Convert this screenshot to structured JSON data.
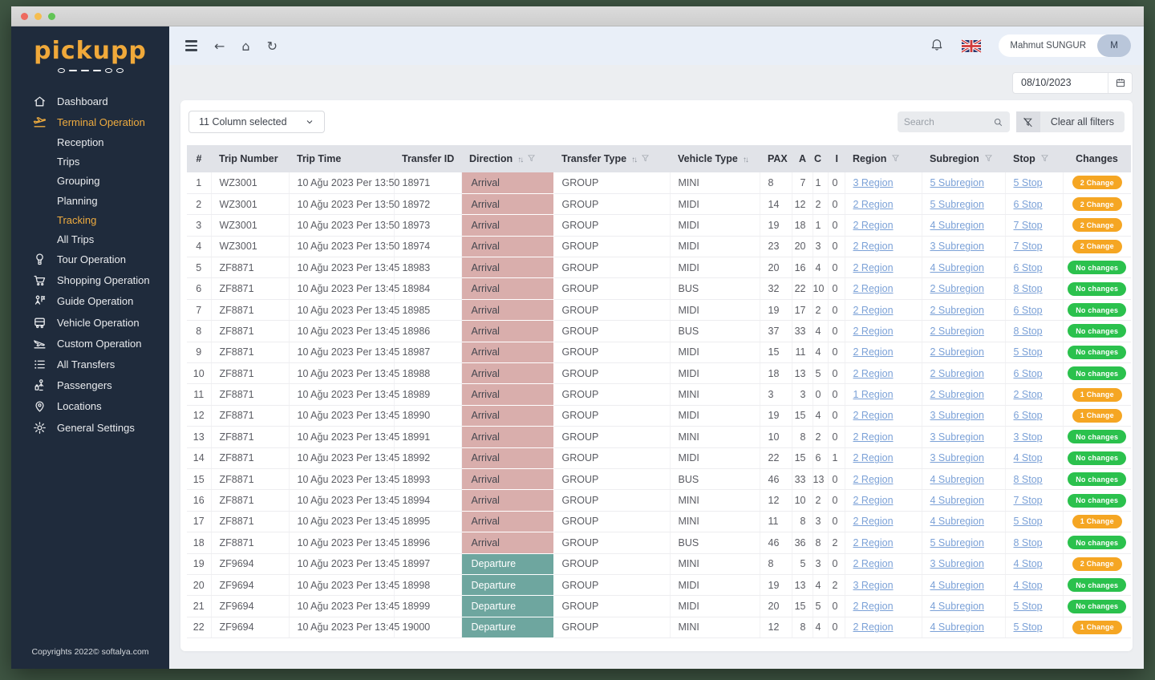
{
  "sidebar": {
    "logo_text": "pickupp",
    "items": [
      {
        "label": "Dashboard",
        "icon": "home-icon",
        "active": false,
        "child": false
      },
      {
        "label": "Terminal Operation",
        "icon": "terminal-icon",
        "active": true,
        "child": false
      },
      {
        "label": "Reception",
        "icon": null,
        "active": false,
        "child": true
      },
      {
        "label": "Trips",
        "icon": null,
        "active": false,
        "child": true
      },
      {
        "label": "Grouping",
        "icon": null,
        "active": false,
        "child": true
      },
      {
        "label": "Planning",
        "icon": null,
        "active": false,
        "child": true
      },
      {
        "label": "Tracking",
        "icon": null,
        "active": true,
        "child": true
      },
      {
        "label": "All Trips",
        "icon": null,
        "active": false,
        "child": true
      },
      {
        "label": "Tour Operation",
        "icon": "balloon-icon",
        "active": false,
        "child": false
      },
      {
        "label": "Shopping Operation",
        "icon": "cart-icon",
        "active": false,
        "child": false
      },
      {
        "label": "Guide Operation",
        "icon": "guide-icon",
        "active": false,
        "child": false
      },
      {
        "label": "Vehicle Operation",
        "icon": "bus-icon",
        "active": false,
        "child": false
      },
      {
        "label": "Custom Operation",
        "icon": "custom-icon",
        "active": false,
        "child": false
      },
      {
        "label": "All Transfers",
        "icon": "list-icon",
        "active": false,
        "child": false
      },
      {
        "label": "Passengers",
        "icon": "passenger-icon",
        "active": false,
        "child": false
      },
      {
        "label": "Locations",
        "icon": "location-icon",
        "active": false,
        "child": false
      },
      {
        "label": "General Settings",
        "icon": "gear-icon",
        "active": false,
        "child": false
      }
    ],
    "footer": "Copyrights 2022© softalya.com"
  },
  "topbar": {
    "user_name": "Mahmut SUNGUR",
    "user_initial": "M"
  },
  "filters": {
    "date_value": "08/10/2023",
    "column_selector_label": "11 Column selected",
    "search_placeholder": "Search",
    "clear_filters_label": "Clear all filters"
  },
  "colors": {
    "accent_orange": "#eeab3f",
    "sidebar_bg": "#1f2b3c",
    "arrival_bg": "#d9aeac",
    "departure_bg": "#6ea69f",
    "badge_orange": "#f5a623",
    "badge_green": "#2bc14d",
    "link_blue": "#7ba1d7"
  },
  "table": {
    "columns": [
      {
        "label": "#",
        "key": "n",
        "cls": "c-num",
        "width": 30
      },
      {
        "label": "Trip Number",
        "key": "trip",
        "cls": "",
        "width": 97
      },
      {
        "label": "Trip Time",
        "key": "time",
        "cls": "",
        "width": 131
      },
      {
        "label": "Transfer ID",
        "key": "id",
        "cls": "",
        "width": 84
      },
      {
        "label": "Direction",
        "key": "dir",
        "cls": "",
        "width": 115,
        "sort": true,
        "filter": true
      },
      {
        "label": "Transfer Type",
        "key": "type",
        "cls": "",
        "width": 145,
        "sort": true,
        "filter": true
      },
      {
        "label": "Vehicle Type",
        "key": "vehicle",
        "cls": "",
        "width": 112,
        "sort": true
      },
      {
        "label": "PAX",
        "key": "pax",
        "cls": "",
        "width": 40
      },
      {
        "label": "A",
        "key": "a",
        "cls": "c-aci",
        "width": 26
      },
      {
        "label": "C",
        "key": "c",
        "cls": "c-aci",
        "width": 19
      },
      {
        "label": "I",
        "key": "i",
        "cls": "c-aci",
        "width": 21
      },
      {
        "label": "Region",
        "key": "region",
        "cls": "",
        "width": 96,
        "filter": true
      },
      {
        "label": "Subregion",
        "key": "subregion",
        "cls": "",
        "width": 104,
        "filter": true
      },
      {
        "label": "Stop",
        "key": "stop",
        "cls": "",
        "width": 72,
        "filter": true
      },
      {
        "label": "Changes",
        "key": "changes",
        "cls": "c-changes",
        "width": 85
      }
    ],
    "rows": [
      {
        "n": 1,
        "trip": "WZ3001",
        "time": "10 Ağu 2023 Per 13:50",
        "id": "18971",
        "dir": "Arrival",
        "type": "GROUP",
        "vehicle": "MINI",
        "pax": 8,
        "a": 7,
        "c": 1,
        "i": 0,
        "region": "3 Region",
        "subregion": "5 Subregion",
        "stop": "5 Stop",
        "changes": "2 Change",
        "changes_color": "orange"
      },
      {
        "n": 2,
        "trip": "WZ3001",
        "time": "10 Ağu 2023 Per 13:50",
        "id": "18972",
        "dir": "Arrival",
        "type": "GROUP",
        "vehicle": "MIDI",
        "pax": 14,
        "a": 12,
        "c": 2,
        "i": 0,
        "region": "2 Region",
        "subregion": "5 Subregion",
        "stop": "6 Stop",
        "changes": "2 Change",
        "changes_color": "orange"
      },
      {
        "n": 3,
        "trip": "WZ3001",
        "time": "10 Ağu 2023 Per 13:50",
        "id": "18973",
        "dir": "Arrival",
        "type": "GROUP",
        "vehicle": "MIDI",
        "pax": 19,
        "a": 18,
        "c": 1,
        "i": 0,
        "region": "2 Region",
        "subregion": "4 Subregion",
        "stop": "7 Stop",
        "changes": "2 Change",
        "changes_color": "orange"
      },
      {
        "n": 4,
        "trip": "WZ3001",
        "time": "10 Ağu 2023 Per 13:50",
        "id": "18974",
        "dir": "Arrival",
        "type": "GROUP",
        "vehicle": "MIDI",
        "pax": 23,
        "a": 20,
        "c": 3,
        "i": 0,
        "region": "2 Region",
        "subregion": "3 Subregion",
        "stop": "7 Stop",
        "changes": "2 Change",
        "changes_color": "orange"
      },
      {
        "n": 5,
        "trip": "ZF8871",
        "time": "10 Ağu 2023 Per 13:45",
        "id": "18983",
        "dir": "Arrival",
        "type": "GROUP",
        "vehicle": "MIDI",
        "pax": 20,
        "a": 16,
        "c": 4,
        "i": 0,
        "region": "2 Region",
        "subregion": "4 Subregion",
        "stop": "6 Stop",
        "changes": "No changes",
        "changes_color": "green"
      },
      {
        "n": 6,
        "trip": "ZF8871",
        "time": "10 Ağu 2023 Per 13:45",
        "id": "18984",
        "dir": "Arrival",
        "type": "GROUP",
        "vehicle": "BUS",
        "pax": 32,
        "a": 22,
        "c": 10,
        "i": 0,
        "region": "2 Region",
        "subregion": "2 Subregion",
        "stop": "8 Stop",
        "changes": "No changes",
        "changes_color": "green"
      },
      {
        "n": 7,
        "trip": "ZF8871",
        "time": "10 Ağu 2023 Per 13:45",
        "id": "18985",
        "dir": "Arrival",
        "type": "GROUP",
        "vehicle": "MIDI",
        "pax": 19,
        "a": 17,
        "c": 2,
        "i": 0,
        "region": "2 Region",
        "subregion": "2 Subregion",
        "stop": "6 Stop",
        "changes": "No changes",
        "changes_color": "green"
      },
      {
        "n": 8,
        "trip": "ZF8871",
        "time": "10 Ağu 2023 Per 13:45",
        "id": "18986",
        "dir": "Arrival",
        "type": "GROUP",
        "vehicle": "BUS",
        "pax": 37,
        "a": 33,
        "c": 4,
        "i": 0,
        "region": "2 Region",
        "subregion": "2 Subregion",
        "stop": "8 Stop",
        "changes": "No changes",
        "changes_color": "green"
      },
      {
        "n": 9,
        "trip": "ZF8871",
        "time": "10 Ağu 2023 Per 13:45",
        "id": "18987",
        "dir": "Arrival",
        "type": "GROUP",
        "vehicle": "MIDI",
        "pax": 15,
        "a": 11,
        "c": 4,
        "i": 0,
        "region": "2 Region",
        "subregion": "2 Subregion",
        "stop": "5 Stop",
        "changes": "No changes",
        "changes_color": "green"
      },
      {
        "n": 10,
        "trip": "ZF8871",
        "time": "10 Ağu 2023 Per 13:45",
        "id": "18988",
        "dir": "Arrival",
        "type": "GROUP",
        "vehicle": "MIDI",
        "pax": 18,
        "a": 13,
        "c": 5,
        "i": 0,
        "region": "2 Region",
        "subregion": "2 Subregion",
        "stop": "6 Stop",
        "changes": "No changes",
        "changes_color": "green"
      },
      {
        "n": 11,
        "trip": "ZF8871",
        "time": "10 Ağu 2023 Per 13:45",
        "id": "18989",
        "dir": "Arrival",
        "type": "GROUP",
        "vehicle": "MINI",
        "pax": 3,
        "a": 3,
        "c": 0,
        "i": 0,
        "region": "1 Region",
        "subregion": "2 Subregion",
        "stop": "2 Stop",
        "changes": "1 Change",
        "changes_color": "orange"
      },
      {
        "n": 12,
        "trip": "ZF8871",
        "time": "10 Ağu 2023 Per 13:45",
        "id": "18990",
        "dir": "Arrival",
        "type": "GROUP",
        "vehicle": "MIDI",
        "pax": 19,
        "a": 15,
        "c": 4,
        "i": 0,
        "region": "2 Region",
        "subregion": "3 Subregion",
        "stop": "6 Stop",
        "changes": "1 Change",
        "changes_color": "orange"
      },
      {
        "n": 13,
        "trip": "ZF8871",
        "time": "10 Ağu 2023 Per 13:45",
        "id": "18991",
        "dir": "Arrival",
        "type": "GROUP",
        "vehicle": "MINI",
        "pax": 10,
        "a": 8,
        "c": 2,
        "i": 0,
        "region": "2 Region",
        "subregion": "3 Subregion",
        "stop": "3 Stop",
        "changes": "No changes",
        "changes_color": "green"
      },
      {
        "n": 14,
        "trip": "ZF8871",
        "time": "10 Ağu 2023 Per 13:45",
        "id": "18992",
        "dir": "Arrival",
        "type": "GROUP",
        "vehicle": "MIDI",
        "pax": 22,
        "a": 15,
        "c": 6,
        "i": 1,
        "region": "2 Region",
        "subregion": "3 Subregion",
        "stop": "4 Stop",
        "changes": "No changes",
        "changes_color": "green"
      },
      {
        "n": 15,
        "trip": "ZF8871",
        "time": "10 Ağu 2023 Per 13:45",
        "id": "18993",
        "dir": "Arrival",
        "type": "GROUP",
        "vehicle": "BUS",
        "pax": 46,
        "a": 33,
        "c": 13,
        "i": 0,
        "region": "2 Region",
        "subregion": "4 Subregion",
        "stop": "8 Stop",
        "changes": "No changes",
        "changes_color": "green"
      },
      {
        "n": 16,
        "trip": "ZF8871",
        "time": "10 Ağu 2023 Per 13:45",
        "id": "18994",
        "dir": "Arrival",
        "type": "GROUP",
        "vehicle": "MINI",
        "pax": 12,
        "a": 10,
        "c": 2,
        "i": 0,
        "region": "2 Region",
        "subregion": "4 Subregion",
        "stop": "7 Stop",
        "changes": "No changes",
        "changes_color": "green"
      },
      {
        "n": 17,
        "trip": "ZF8871",
        "time": "10 Ağu 2023 Per 13:45",
        "id": "18995",
        "dir": "Arrival",
        "type": "GROUP",
        "vehicle": "MINI",
        "pax": 11,
        "a": 8,
        "c": 3,
        "i": 0,
        "region": "2 Region",
        "subregion": "4 Subregion",
        "stop": "5 Stop",
        "changes": "1 Change",
        "changes_color": "orange"
      },
      {
        "n": 18,
        "trip": "ZF8871",
        "time": "10 Ağu 2023 Per 13:45",
        "id": "18996",
        "dir": "Arrival",
        "type": "GROUP",
        "vehicle": "BUS",
        "pax": 46,
        "a": 36,
        "c": 8,
        "i": 2,
        "region": "2 Region",
        "subregion": "5 Subregion",
        "stop": "8 Stop",
        "changes": "No changes",
        "changes_color": "green"
      },
      {
        "n": 19,
        "trip": "ZF9694",
        "time": "10 Ağu 2023 Per 13:45",
        "id": "18997",
        "dir": "Departure",
        "type": "GROUP",
        "vehicle": "MINI",
        "pax": 8,
        "a": 5,
        "c": 3,
        "i": 0,
        "region": "2 Region",
        "subregion": "3 Subregion",
        "stop": "4 Stop",
        "changes": "2 Change",
        "changes_color": "orange"
      },
      {
        "n": 20,
        "trip": "ZF9694",
        "time": "10 Ağu 2023 Per 13:45",
        "id": "18998",
        "dir": "Departure",
        "type": "GROUP",
        "vehicle": "MIDI",
        "pax": 19,
        "a": 13,
        "c": 4,
        "i": 2,
        "region": "3 Region",
        "subregion": "4 Subregion",
        "stop": "4 Stop",
        "changes": "No changes",
        "changes_color": "green"
      },
      {
        "n": 21,
        "trip": "ZF9694",
        "time": "10 Ağu 2023 Per 13:45",
        "id": "18999",
        "dir": "Departure",
        "type": "GROUP",
        "vehicle": "MIDI",
        "pax": 20,
        "a": 15,
        "c": 5,
        "i": 0,
        "region": "2 Region",
        "subregion": "4 Subregion",
        "stop": "5 Stop",
        "changes": "No changes",
        "changes_color": "green"
      },
      {
        "n": 22,
        "trip": "ZF9694",
        "time": "10 Ağu 2023 Per 13:45",
        "id": "19000",
        "dir": "Departure",
        "type": "GROUP",
        "vehicle": "MINI",
        "pax": 12,
        "a": 8,
        "c": 4,
        "i": 0,
        "region": "2 Region",
        "subregion": "4 Subregion",
        "stop": "5 Stop",
        "changes": "1 Change",
        "changes_color": "orange"
      }
    ]
  }
}
